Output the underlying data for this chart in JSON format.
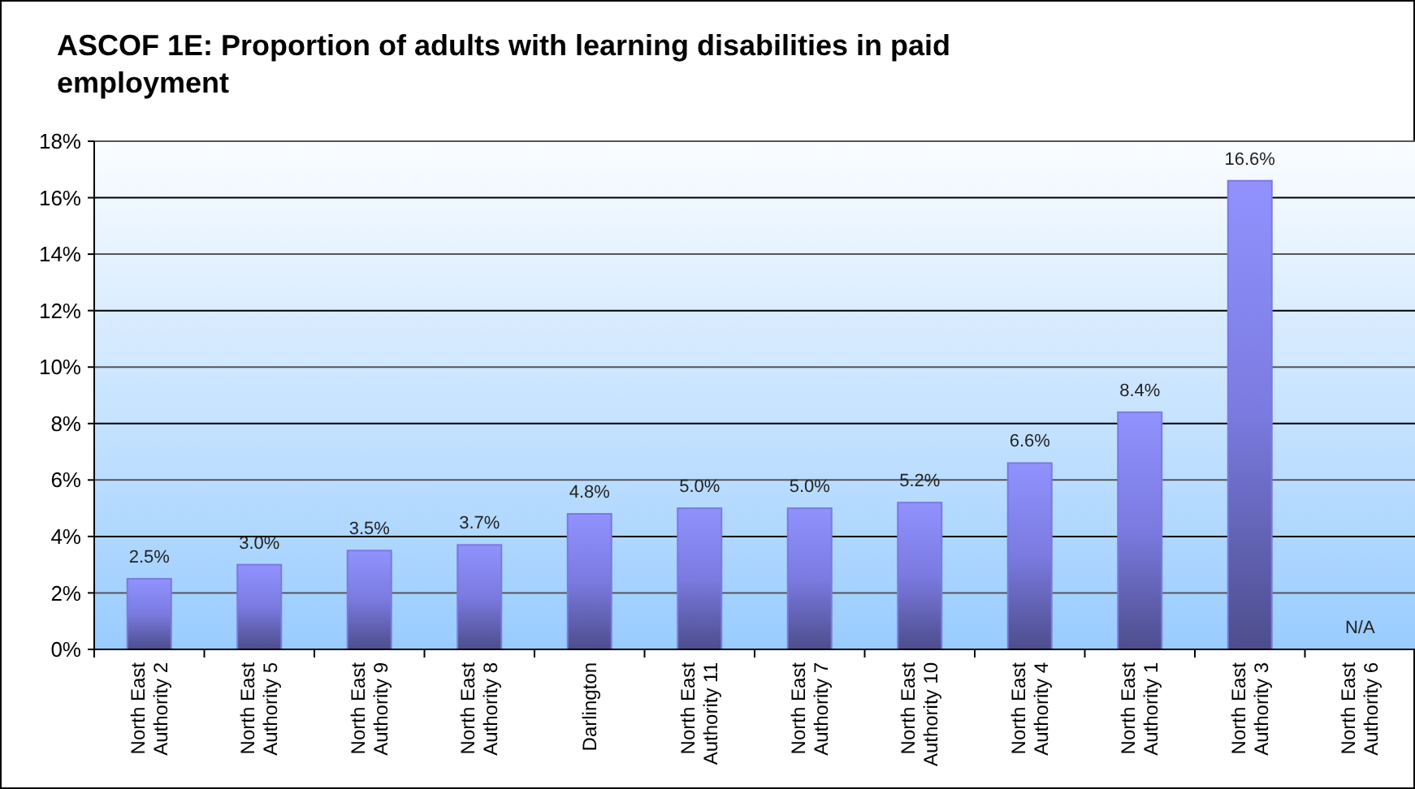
{
  "chart_data": {
    "type": "bar",
    "title": "ASCOF 1E: Proportion of adults with learning disabilities in paid employment",
    "categories": [
      "North East Authority 2",
      "North East Authority 5",
      "North East Authority 9",
      "North East Authority 8",
      "Darlington",
      "North East Authority 11",
      "North East Authority 7",
      "North East Authority 10",
      "North East Authority 4",
      "North East Authority 1",
      "North East Authority 3",
      "North East Authority 6"
    ],
    "values": [
      2.5,
      3.0,
      3.5,
      3.7,
      4.8,
      5.0,
      5.0,
      5.2,
      6.6,
      8.4,
      16.6,
      null
    ],
    "value_labels": [
      "2.5%",
      "3.0%",
      "3.5%",
      "3.7%",
      "4.8%",
      "5.0%",
      "5.0%",
      "5.2%",
      "6.6%",
      "8.4%",
      "16.6%",
      "N/A"
    ],
    "color": "#7a7ae0",
    "ylim": [
      0,
      18
    ],
    "yticks": [
      {
        "value": 0,
        "label": "0%"
      },
      {
        "value": 2,
        "label": "2%"
      },
      {
        "value": 4,
        "label": "4%"
      },
      {
        "value": 6,
        "label": "6%"
      },
      {
        "value": 8,
        "label": "8%"
      },
      {
        "value": 10,
        "label": "10%"
      },
      {
        "value": 12,
        "label": "12%"
      },
      {
        "value": 14,
        "label": "14%"
      },
      {
        "value": 16,
        "label": "16%"
      },
      {
        "value": 18,
        "label": "18%"
      }
    ],
    "grid": "y"
  }
}
